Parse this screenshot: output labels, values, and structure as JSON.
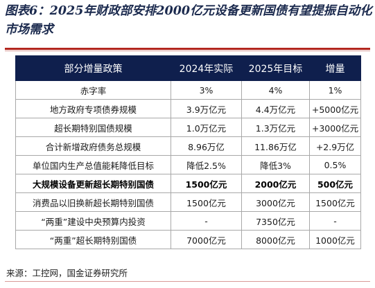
{
  "figure": {
    "title": "图表6：2025年财政部安排2000亿元设备更新国债有望提振自动化市场需求",
    "source": "来源：工控网，国金证券研究所"
  },
  "table": {
    "headers": [
      "部分增量政策",
      "2024年实际",
      "2025年目标",
      "增量"
    ],
    "rows": [
      {
        "cells": [
          "赤字率",
          "3%",
          "4%",
          "1%"
        ],
        "bold": false
      },
      {
        "cells": [
          "地方政府专项债券规模",
          "3.9万亿元",
          "4.4万亿元",
          "+5000亿元"
        ],
        "bold": false
      },
      {
        "cells": [
          "超长期特别国债规模",
          "1.0万亿元",
          "1.3万亿元",
          "+3000亿元"
        ],
        "bold": false
      },
      {
        "cells": [
          "合计新增政府债务总规模",
          "8.96万亿",
          "11.86万亿",
          "+2.9万亿"
        ],
        "bold": false
      },
      {
        "cells": [
          "单位国内生产总值能耗降低目标",
          "降低2.5%",
          "降低3%",
          "0.5%"
        ],
        "bold": false
      },
      {
        "cells": [
          "大规模设备更新超长期特别国债",
          "1500亿元",
          "2000亿元",
          "500亿元"
        ],
        "bold": true
      },
      {
        "cells": [
          "消费品以旧换新超长期特别国债",
          "1500亿元",
          "3000亿元",
          "1500亿元"
        ],
        "bold": false
      },
      {
        "cells": [
          "“两重”建设中央预算内投资",
          "-",
          "7350亿元",
          "-"
        ],
        "bold": false
      },
      {
        "cells": [
          "“两重”超长期特别国债",
          "7000亿元",
          "8000亿元",
          "1000亿元"
        ],
        "bold": false
      }
    ]
  },
  "colors": {
    "header_bg": "#0f1f4d",
    "title_text": "#1b2a4e",
    "rule_red": "#b3261e"
  }
}
